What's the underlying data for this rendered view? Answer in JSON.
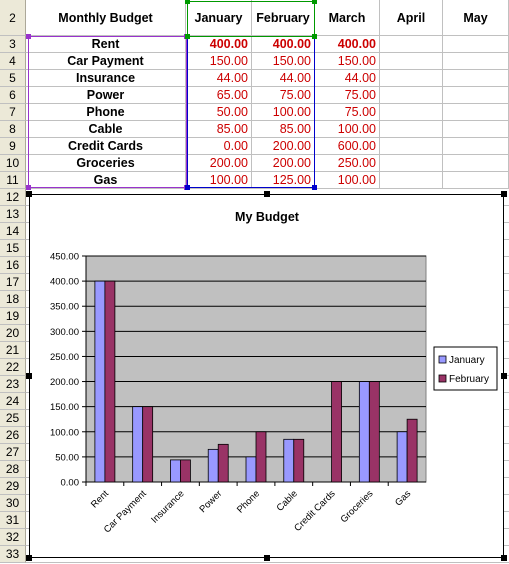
{
  "sheet": {
    "row_numbers": [
      "2",
      "3",
      "4",
      "5",
      "6",
      "7",
      "8",
      "9",
      "10",
      "11",
      "12",
      "13",
      "14",
      "15",
      "16",
      "17",
      "18",
      "19",
      "20",
      "21",
      "22",
      "23",
      "24",
      "25",
      "26",
      "27",
      "28",
      "29",
      "30",
      "31",
      "32",
      "33"
    ],
    "headers": [
      "Monthly Budget",
      "January",
      "February",
      "March",
      "April",
      "May"
    ],
    "rows": [
      {
        "label": "Rent",
        "jan": "400.00",
        "feb": "400.00",
        "mar": "400.00"
      },
      {
        "label": "Car Payment",
        "jan": "150.00",
        "feb": "150.00",
        "mar": "150.00"
      },
      {
        "label": "Insurance",
        "jan": "44.00",
        "feb": "44.00",
        "mar": "44.00"
      },
      {
        "label": "Power",
        "jan": "65.00",
        "feb": "75.00",
        "mar": "75.00"
      },
      {
        "label": "Phone",
        "jan": "50.00",
        "feb": "100.00",
        "mar": "75.00"
      },
      {
        "label": "Cable",
        "jan": "85.00",
        "feb": "85.00",
        "mar": "100.00"
      },
      {
        "label": "Credit Cards",
        "jan": "0.00",
        "feb": "200.00",
        "mar": "600.00"
      },
      {
        "label": "Groceries",
        "jan": "200.00",
        "feb": "200.00",
        "mar": "250.00"
      },
      {
        "label": "Gas",
        "jan": "100.00",
        "feb": "125.00",
        "mar": "100.00"
      }
    ],
    "colors": {
      "number_text": "#cc0000",
      "header_bg": "#ece9d8",
      "selection_blue": "#0000cc",
      "selection_purple": "#9933cc",
      "selection_green": "#009900"
    }
  },
  "chart_data": {
    "type": "bar",
    "title": "My Budget",
    "categories": [
      "Rent",
      "Car Payment",
      "Insurance",
      "Power",
      "Phone",
      "Cable",
      "Credit Cards",
      "Groceries",
      "Gas"
    ],
    "series": [
      {
        "name": "January",
        "color": "#9999ff",
        "values": [
          400,
          150,
          44,
          65,
          50,
          85,
          0,
          200,
          100
        ]
      },
      {
        "name": "February",
        "color": "#993366",
        "values": [
          400,
          150,
          44,
          75,
          100,
          85,
          200,
          200,
          125
        ]
      }
    ],
    "ylim": [
      0,
      450
    ],
    "yticks": [
      "0.00",
      "50.00",
      "100.00",
      "150.00",
      "200.00",
      "250.00",
      "300.00",
      "350.00",
      "400.00",
      "450.00"
    ],
    "plot_bg": "#c0c0c0",
    "grid": true,
    "legend_position": "right"
  }
}
